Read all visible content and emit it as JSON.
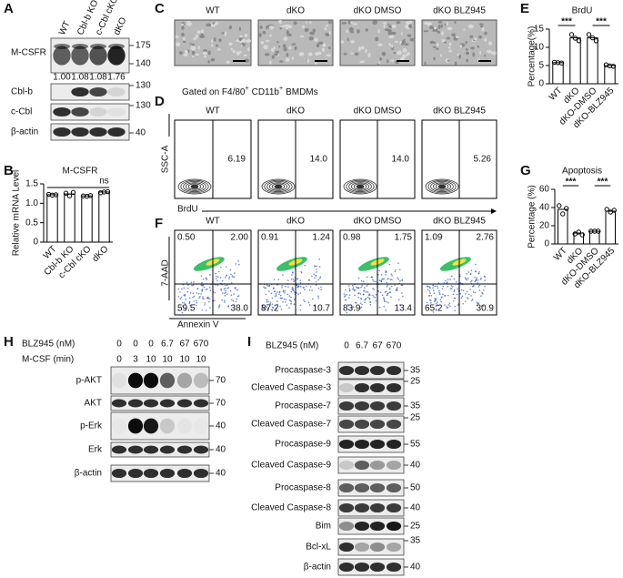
{
  "panel_labels": [
    "A",
    "B",
    "C",
    "D",
    "E",
    "F",
    "G",
    "H",
    "I"
  ],
  "panel_a": {
    "lanes": [
      "WT",
      "Cbl-b KO",
      "c-Cbl cKO",
      "dKO"
    ],
    "rows": [
      "M-CSFR",
      "Cbl-b",
      "c-Cbl",
      "β-actin"
    ],
    "markers": [
      "175",
      "140",
      "130",
      "130",
      "40"
    ],
    "quantification": [
      "1.00",
      "1.08",
      "1.08",
      "1.76"
    ]
  },
  "chart_data": [
    {
      "type": "bar",
      "title": "M-CSFR",
      "y_label": "Relative mRNA Level",
      "categories": [
        "WT",
        "Cbl-b KO",
        "c-Cbl cKO",
        "dKO"
      ],
      "values": [
        1.22,
        1.24,
        1.19,
        1.29
      ],
      "points": [
        [
          1.23,
          1.21,
          1.22
        ],
        [
          1.26,
          1.19,
          1.28
        ],
        [
          1.19,
          1.18,
          1.2
        ],
        [
          1.27,
          1.29,
          1.3
        ]
      ],
      "ylim": [
        0,
        1.5
      ],
      "yticks": [
        0,
        0.5,
        {
          "value": 1,
          "label": "1.0"
        },
        1.5
      ],
      "annotations": [
        "ns"
      ],
      "color": "#ffffff"
    },
    {
      "type": "bar",
      "title": "BrdU",
      "y_label": "Percentage(%)",
      "categories": [
        "WT",
        "dKO",
        "dKO-DMSO",
        "dKO-BLZ945"
      ],
      "values": [
        5.8,
        12.6,
        12.6,
        5.0
      ],
      "points": [
        [
          5.9,
          5.8,
          5.7
        ],
        [
          13.5,
          12.5,
          11.8
        ],
        [
          13.5,
          12.6,
          11.8
        ],
        [
          5.2,
          4.9,
          4.8
        ]
      ],
      "ylim": [
        0,
        15
      ],
      "yticks": [
        0,
        5,
        10,
        15
      ],
      "annotations": [
        "***",
        "***"
      ],
      "color": "#ffffff"
    },
    {
      "type": "bar",
      "title": "Apoptosis",
      "y_label": "Percentage (%)",
      "categories": [
        "WT",
        "dKO",
        "dKO-DMSO",
        "dKO-BLZ945"
      ],
      "values": [
        38,
        12,
        14,
        36
      ],
      "points": [
        [
          42,
          33,
          39
        ],
        [
          11,
          13,
          10
        ],
        [
          14,
          14,
          14
        ],
        [
          38,
          35,
          37
        ]
      ],
      "ylim": [
        0,
        60
      ],
      "yticks": [
        0,
        20,
        40,
        60
      ],
      "annotations": [
        "***",
        "***"
      ],
      "color": "#ffffff"
    }
  ],
  "panel_c": {
    "groups": [
      "WT",
      "dKO",
      "dKO DMSO",
      "dKO BLZ945"
    ]
  },
  "panel_d": {
    "title": [
      "Gated on F4/80",
      "+",
      "CD11b",
      "+",
      "BMDMs"
    ],
    "groups": [
      "WT",
      "dKO",
      "dKO DMSO",
      "dKO BLZ945"
    ],
    "values": [
      "6.19",
      "14.0",
      "14.0",
      "5.26"
    ],
    "y_label": "SSC-A",
    "x_label": "BrdU"
  },
  "panel_f": {
    "groups": [
      "WT",
      "dKO",
      "dKO DMSO",
      "dKO BLZ945"
    ],
    "quadrants": [
      [
        "0.50",
        "2.00",
        "59.5",
        "38.0"
      ],
      [
        "0.91",
        "1.24",
        "87.2",
        "10.7"
      ],
      [
        "0.98",
        "1.75",
        "83.9",
        "13.4"
      ],
      [
        "1.09",
        "2.76",
        "65.2",
        "30.9"
      ]
    ],
    "y_label": "7-AAD",
    "x_label": "Annexin V"
  },
  "panel_h": {
    "treatments": [
      {
        "label": "BLZ945 (nM)",
        "values": [
          "0",
          "0",
          "0",
          "6.7",
          "67",
          "670"
        ]
      },
      {
        "label": "M-CSF (min)",
        "values": [
          "0",
          "3",
          "10",
          "10",
          "10",
          "10"
        ]
      }
    ],
    "rows": [
      "p-AKT",
      "AKT",
      "p-Erk",
      "Erk",
      "β-actin"
    ],
    "markers": [
      "70",
      "70",
      "40",
      "40",
      "40"
    ]
  },
  "panel_i": {
    "treatment": {
      "label": "BLZ945 (nM)",
      "values": [
        "0",
        "6.7",
        "67",
        "670"
      ]
    },
    "rows": [
      "Procaspase-3",
      "Cleaved Caspase-3",
      "Procaspase-7",
      "Cleaved Caspase-7",
      "Procaspase-9",
      "Cleaved Caspase-9",
      "Procaspase-8",
      "Cleaved Caspase-8",
      "Bim",
      "Bcl-xL",
      "β-actin"
    ],
    "markers": [
      "35",
      "25",
      "35",
      "25",
      "55",
      "40",
      "50",
      "40",
      "25",
      "35",
      "40"
    ]
  }
}
